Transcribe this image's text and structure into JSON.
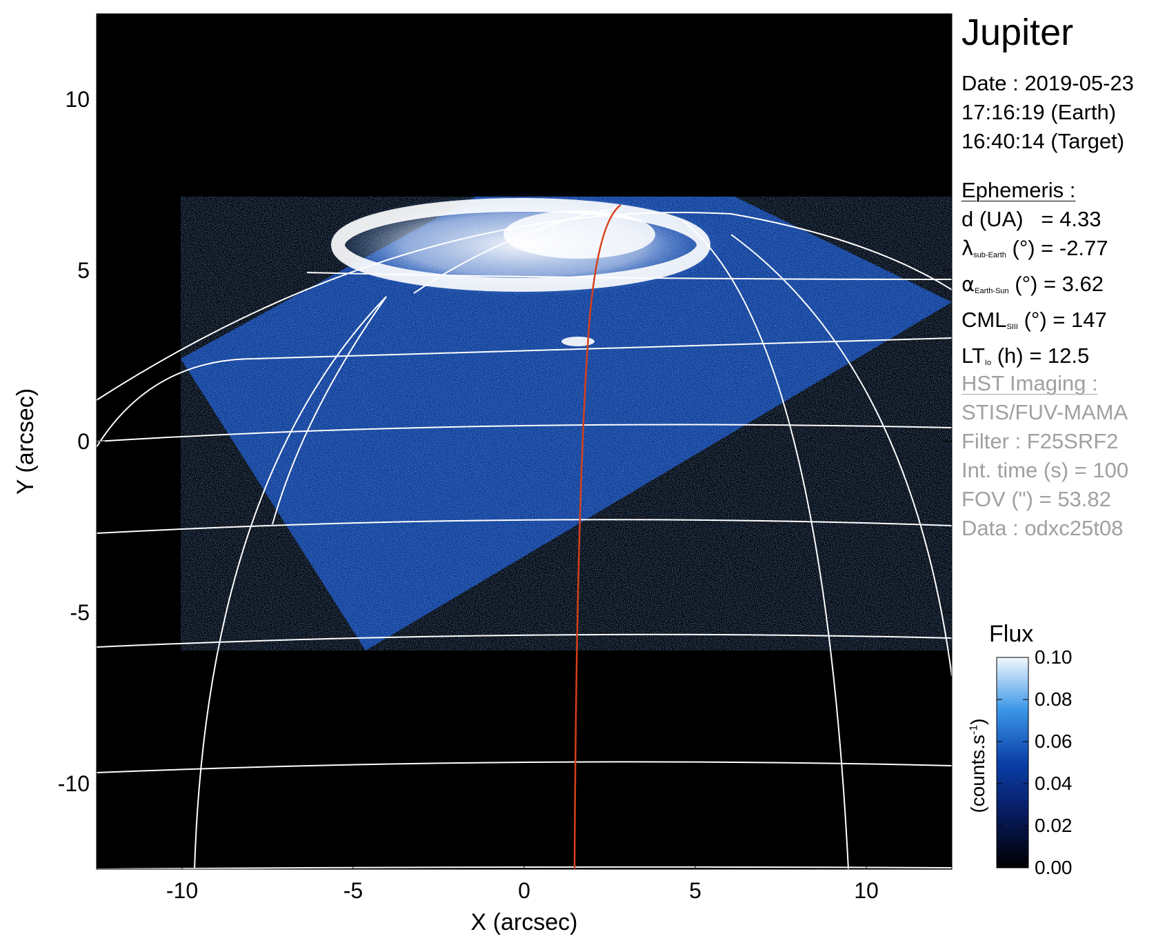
{
  "chart_data": {
    "type": "heatmap",
    "title": "Jupiter",
    "xlabel": "X (arcsec)",
    "ylabel": "Y (arcsec)",
    "xlim": [
      -12.5,
      12.5
    ],
    "ylim": [
      -12.5,
      12.5
    ],
    "x_ticks": [
      -10,
      -5,
      0,
      5,
      10
    ],
    "y_ticks": [
      -10,
      -5,
      0,
      5,
      10
    ],
    "x_tick_labels": [
      "-10",
      "-5",
      "0",
      "5",
      "10"
    ],
    "y_tick_labels": [
      "-10",
      "-5",
      "0",
      "5",
      "10"
    ],
    "colorbar": {
      "title": "Flux",
      "unit_label": "(counts.s",
      "unit_exp": "-1",
      "unit_close": ")",
      "range": [
        0.0,
        0.1
      ],
      "ticks": [
        0.0,
        0.02,
        0.04,
        0.06,
        0.08,
        0.1
      ],
      "tick_labels": [
        "0.00",
        "0.02",
        "0.04",
        "0.06",
        "0.08",
        "0.10"
      ]
    },
    "footpath_color": "#d7401a",
    "grid_color": "#ffffff",
    "background_color": "#000000"
  },
  "info": {
    "date_line": "Date : 2019-05-23",
    "earth_time": "17:16:19 (Earth)",
    "target_time": "16:40:14 (Target)",
    "ephemeris_header": "Ephemeris :",
    "d_label": "d (UA)",
    "d_value": "= 4.33",
    "lambda_symbol": "λ",
    "lambda_sub": "sub-Earth",
    "lambda_rest": "(°) = -2.77",
    "alpha_symbol": "α",
    "alpha_sub": "Earth-Sun",
    "alpha_rest": "(°) = 3.62",
    "cml_label": "CML",
    "cml_sub": "SIII",
    "cml_rest": "(°) = 147",
    "lt_label": "LT",
    "lt_sub": "Io",
    "lt_rest": "(h) = 12.5",
    "hst_header": "HST Imaging :",
    "instrument": "STIS/FUV-MAMA",
    "filter": "Filter : F25SRF2",
    "int_time": "Int. time (s) = 100",
    "fov": "FOV (\") = 53.82",
    "dataset": "Data : odxc25t08"
  }
}
